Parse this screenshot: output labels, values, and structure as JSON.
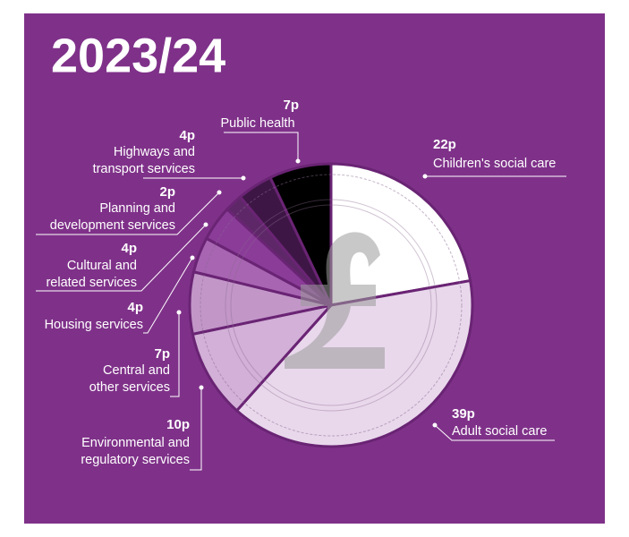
{
  "chart_data": {
    "type": "pie",
    "title": "2023/24",
    "categories": [
      [
        "Children's social care"
      ],
      [
        "Adult social care"
      ],
      [
        "Environmental and",
        "regulatory services"
      ],
      [
        "Central and",
        "other services"
      ],
      [
        "Housing services"
      ],
      [
        "Cultural and",
        "related services"
      ],
      [
        "Planning and",
        "development services"
      ],
      [
        "Highways and",
        "transport services"
      ],
      [
        "Public health"
      ]
    ],
    "values": [
      22,
      39,
      10,
      7,
      4,
      4,
      2,
      4,
      7
    ],
    "value_labels": [
      "22p",
      "39p",
      "10p",
      "7p",
      "4p",
      "4p",
      "2p",
      "4p",
      "7p"
    ],
    "colors": [
      "#ffffff",
      "#e9d8ec",
      "#d2b0d7",
      "#c297c8",
      "#a865b2",
      "#8b3c99",
      "#5e2868",
      "#3e1646",
      "#000000"
    ]
  }
}
